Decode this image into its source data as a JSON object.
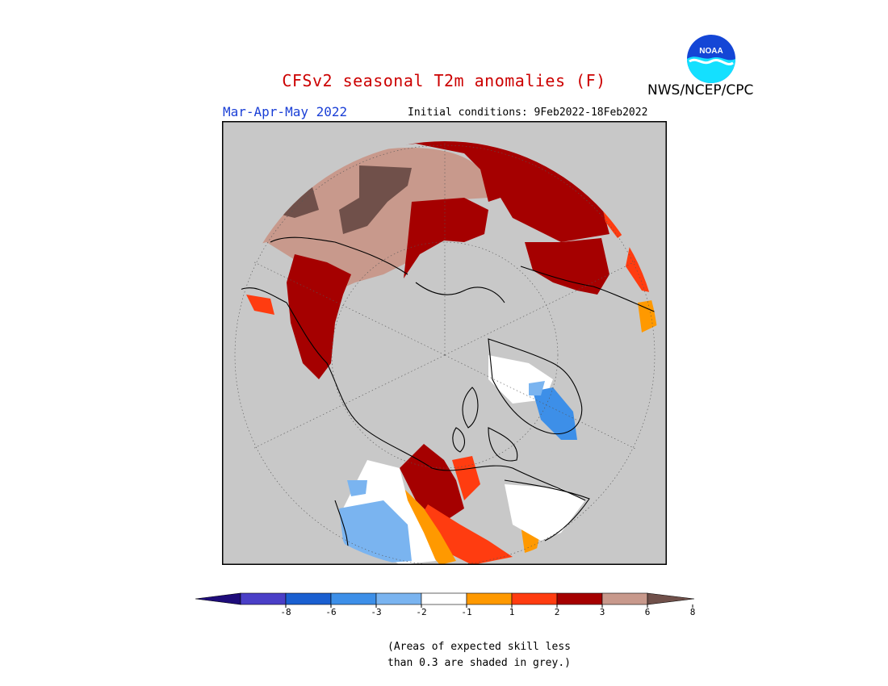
{
  "header": {
    "title": "CFSv2 seasonal T2m anomalies (F)",
    "org": "NWS/NCEP/CPC",
    "logo_text": "NOAA",
    "season": "Mar-Apr-May 2022",
    "initial_conditions": "Initial conditions: 9Feb2022-18Feb2022"
  },
  "legend": {
    "colors": [
      "#1e0c7a",
      "#4a3fc7",
      "#1a5fd0",
      "#3d8fe8",
      "#7ab4f0",
      "#ffffff",
      "#ff9900",
      "#ff3c10",
      "#a50000",
      "#c8998c",
      "#70504a"
    ],
    "labels": [
      "-8",
      "-6",
      "-3",
      "-2",
      "-1",
      "1",
      "2",
      "3",
      "6",
      "8"
    ]
  },
  "note": {
    "line1": "(Areas of expected skill less",
    "line2": "than 0.3 are shaded in grey.)"
  },
  "map": {
    "background": "#c8c8c8",
    "colors": {
      "dark_brown": "#70504a",
      "light_brown": "#c8998c",
      "dark_red": "#a50000",
      "red": "#ff3c10",
      "orange": "#ff9900",
      "white": "#ffffff",
      "light_blue": "#7ab4f0",
      "blue": "#3d8fe8"
    }
  }
}
